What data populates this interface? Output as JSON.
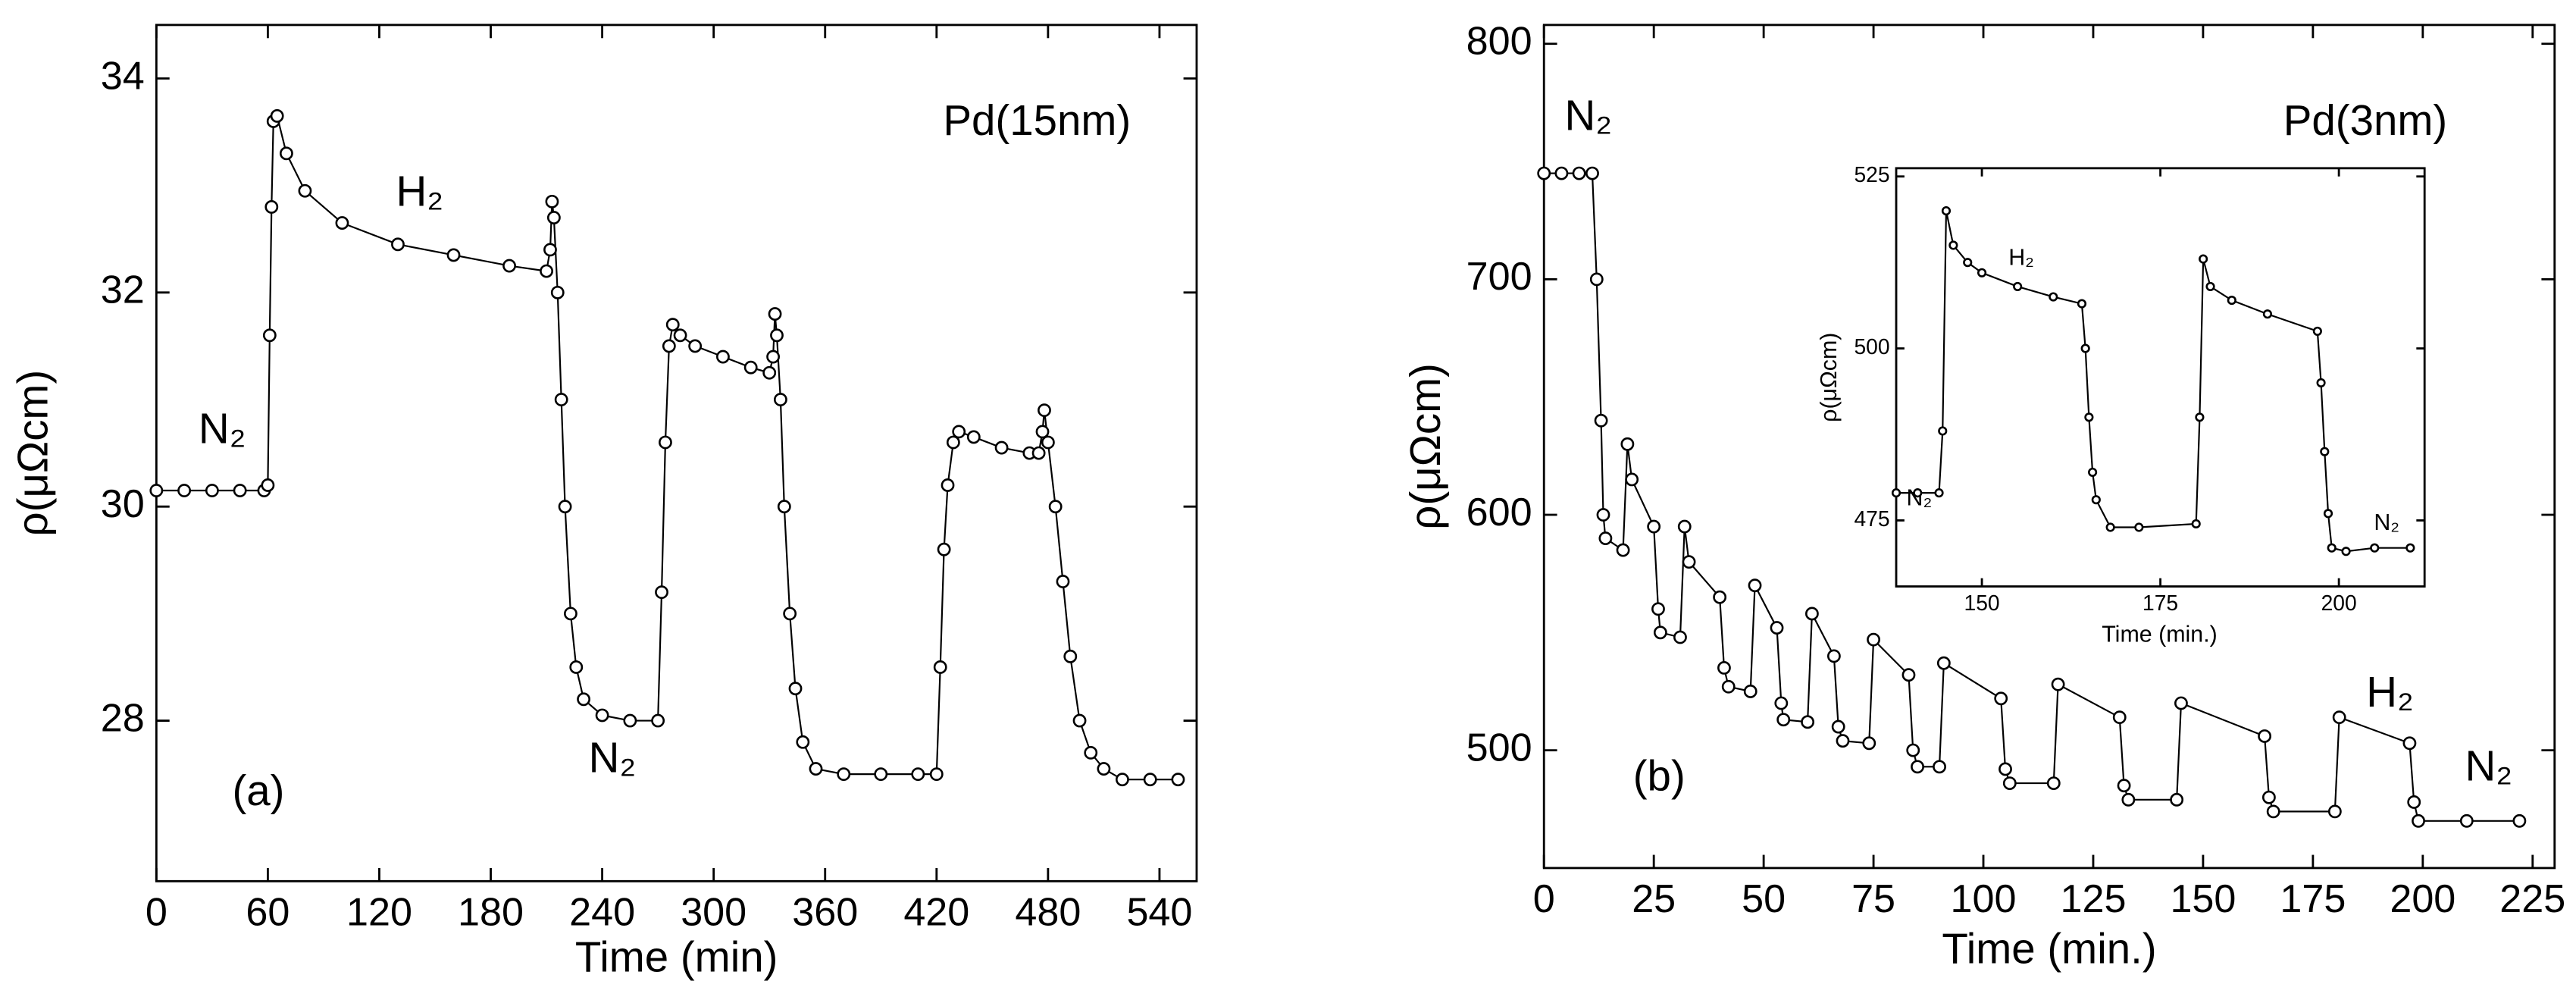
{
  "chart_data": [
    {
      "type": "line",
      "color": "#000000",
      "marker": "circle",
      "xlabel": "Time (min)",
      "ylabel": "ρ(μΩcm)",
      "annotations": [
        "Pd(15nm)",
        "H₂",
        "N₂",
        "N₂",
        "(a)"
      ],
      "xlim": [
        0,
        560
      ],
      "ylim": [
        26.5,
        34.5
      ],
      "xticks": [
        0,
        60,
        120,
        180,
        240,
        300,
        360,
        420,
        480,
        540
      ],
      "yticks": [
        28,
        30,
        32,
        34
      ],
      "series": [
        {
          "name": "Pd(15nm)",
          "color": "#000000",
          "x": [
            0,
            15,
            30,
            45,
            58,
            60,
            61,
            62,
            63,
            65,
            70,
            80,
            100,
            130,
            160,
            190,
            210,
            212,
            213,
            214,
            216,
            218,
            220,
            223,
            226,
            230,
            240,
            255,
            270,
            272,
            274,
            276,
            278,
            282,
            290,
            305,
            320,
            330,
            332,
            333,
            334,
            336,
            338,
            341,
            344,
            348,
            355,
            370,
            390,
            410,
            420,
            422,
            424,
            426,
            429,
            432,
            440,
            455,
            470,
            475,
            477,
            478,
            480,
            484,
            488,
            492,
            497,
            503,
            510,
            520,
            535,
            550
          ],
          "y": [
            30.15,
            30.15,
            30.15,
            30.15,
            30.15,
            30.2,
            31.6,
            32.8,
            33.6,
            33.65,
            33.3,
            32.95,
            32.65,
            32.45,
            32.35,
            32.25,
            32.2,
            32.4,
            32.85,
            32.7,
            32.0,
            31.0,
            30.0,
            29.0,
            28.5,
            28.2,
            28.05,
            28.0,
            28.0,
            29.2,
            30.6,
            31.5,
            31.7,
            31.6,
            31.5,
            31.4,
            31.3,
            31.25,
            31.4,
            31.8,
            31.6,
            31.0,
            30.0,
            29.0,
            28.3,
            27.8,
            27.55,
            27.5,
            27.5,
            27.5,
            27.5,
            28.5,
            29.6,
            30.2,
            30.6,
            30.7,
            30.65,
            30.55,
            30.5,
            30.5,
            30.7,
            30.9,
            30.6,
            30.0,
            29.3,
            28.6,
            28.0,
            27.7,
            27.55,
            27.45,
            27.45,
            27.45
          ]
        }
      ]
    },
    {
      "type": "line",
      "color": "#000000",
      "marker": "circle",
      "xlabel": "Time (min.)",
      "ylabel": "ρ(μΩcm)",
      "annotations": [
        "N₂",
        "Pd(3nm)",
        "H₂",
        "N₂",
        "(b)"
      ],
      "xlim": [
        0,
        230
      ],
      "ylim": [
        450,
        808
      ],
      "xticks": [
        0,
        25,
        50,
        75,
        100,
        125,
        150,
        175,
        200,
        225
      ],
      "yticks": [
        500,
        600,
        700,
        800
      ],
      "series": [
        {
          "name": "Pd(3nm)",
          "color": "#000000",
          "x": [
            0,
            4,
            8,
            11,
            12,
            13,
            13.5,
            14,
            18,
            19,
            20,
            25,
            26,
            26.5,
            31,
            32,
            33,
            40,
            41,
            42,
            47,
            48,
            53,
            54,
            54.5,
            60,
            61,
            66,
            67,
            68,
            74,
            75,
            83,
            84,
            85,
            90,
            91,
            104,
            105,
            106,
            116,
            117,
            131,
            132,
            133,
            144,
            145,
            164,
            165,
            166,
            180,
            181,
            197,
            198,
            199,
            210,
            222
          ],
          "y": [
            745,
            745,
            745,
            745,
            700,
            640,
            600,
            590,
            585,
            630,
            615,
            595,
            560,
            550,
            548,
            595,
            580,
            565,
            535,
            527,
            525,
            570,
            552,
            520,
            513,
            512,
            558,
            540,
            510,
            504,
            503,
            547,
            532,
            500,
            493,
            493,
            537,
            522,
            492,
            486,
            486,
            528,
            514,
            485,
            479,
            479,
            520,
            506,
            480,
            474,
            474,
            514,
            503,
            478,
            470,
            470,
            470
          ]
        }
      ]
    },
    {
      "type": "line",
      "color": "#000000",
      "marker": "circle",
      "xlabel": "Time (min.)",
      "ylabel": "ρ(μΩcm)",
      "annotations": [
        "H₂",
        "N₂",
        "N₂"
      ],
      "xlim": [
        138,
        212
      ],
      "ylim": [
        465.4,
        526.2
      ],
      "xticks": [
        150,
        175,
        200
      ],
      "yticks": [
        475,
        500,
        525
      ],
      "series": [
        {
          "name": "inset",
          "color": "#000000",
          "x": [
            138,
            141,
            144,
            144.5,
            145,
            146,
            148,
            150,
            155,
            160,
            164,
            164.5,
            165,
            165.5,
            166,
            168,
            172,
            180,
            180.5,
            181,
            182,
            185,
            190,
            197,
            197.5,
            198,
            198.5,
            199,
            201,
            205,
            210
          ],
          "y": [
            479,
            479,
            479,
            488,
            520,
            515,
            512.5,
            511,
            509,
            507.5,
            506.5,
            500,
            490,
            482,
            478,
            474,
            474,
            474.5,
            490,
            513,
            509,
            507,
            505,
            502.5,
            495,
            485,
            476,
            471,
            470.5,
            471,
            471
          ]
        }
      ]
    }
  ]
}
